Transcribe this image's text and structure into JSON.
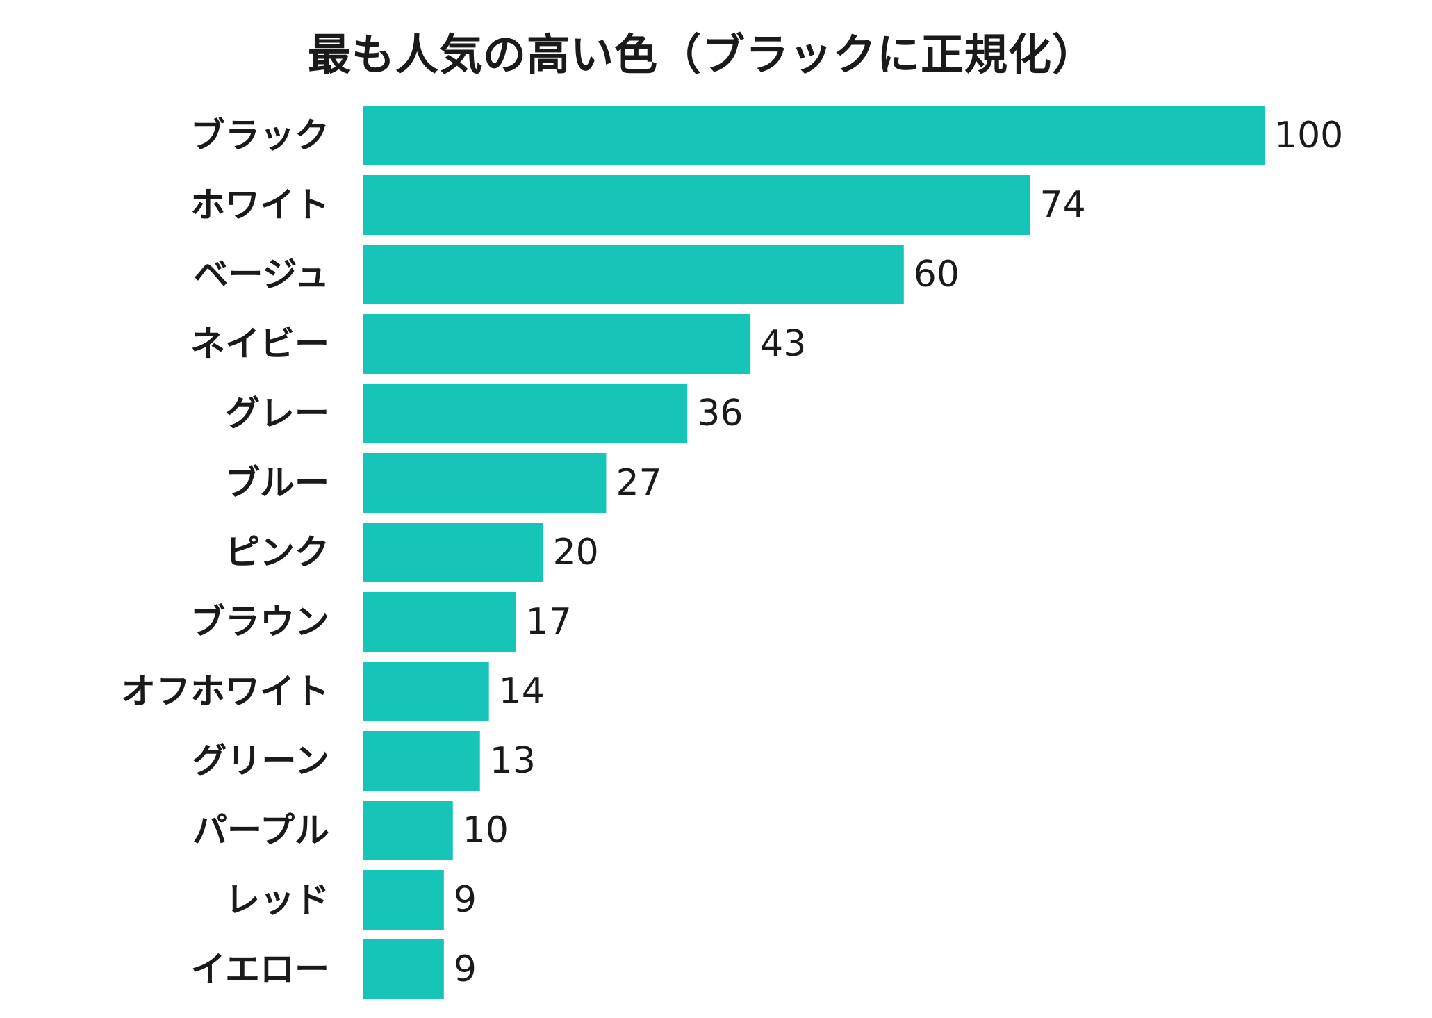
{
  "chart_data": {
    "type": "bar",
    "orientation": "horizontal",
    "title": "最も人気の高い色（ブラックに正規化）",
    "categories": [
      "ブラック",
      "ホワイト",
      "ベージュ",
      "ネイビー",
      "グレー",
      "ブルー",
      "ピンク",
      "ブラウン",
      "オフホワイト",
      "グリーン",
      "パープル",
      "レッド",
      "イエロー"
    ],
    "values": [
      100,
      74,
      60,
      43,
      36,
      27,
      20,
      17,
      14,
      13,
      10,
      9,
      9
    ],
    "value_labels": [
      "100",
      "74",
      "60",
      "43",
      "36",
      "27",
      "20",
      "17",
      "14",
      "13",
      "10",
      "9",
      "9"
    ],
    "xlim": [
      0,
      100
    ],
    "grid": false,
    "legend": "none",
    "bar_color": "#17c5b8"
  }
}
